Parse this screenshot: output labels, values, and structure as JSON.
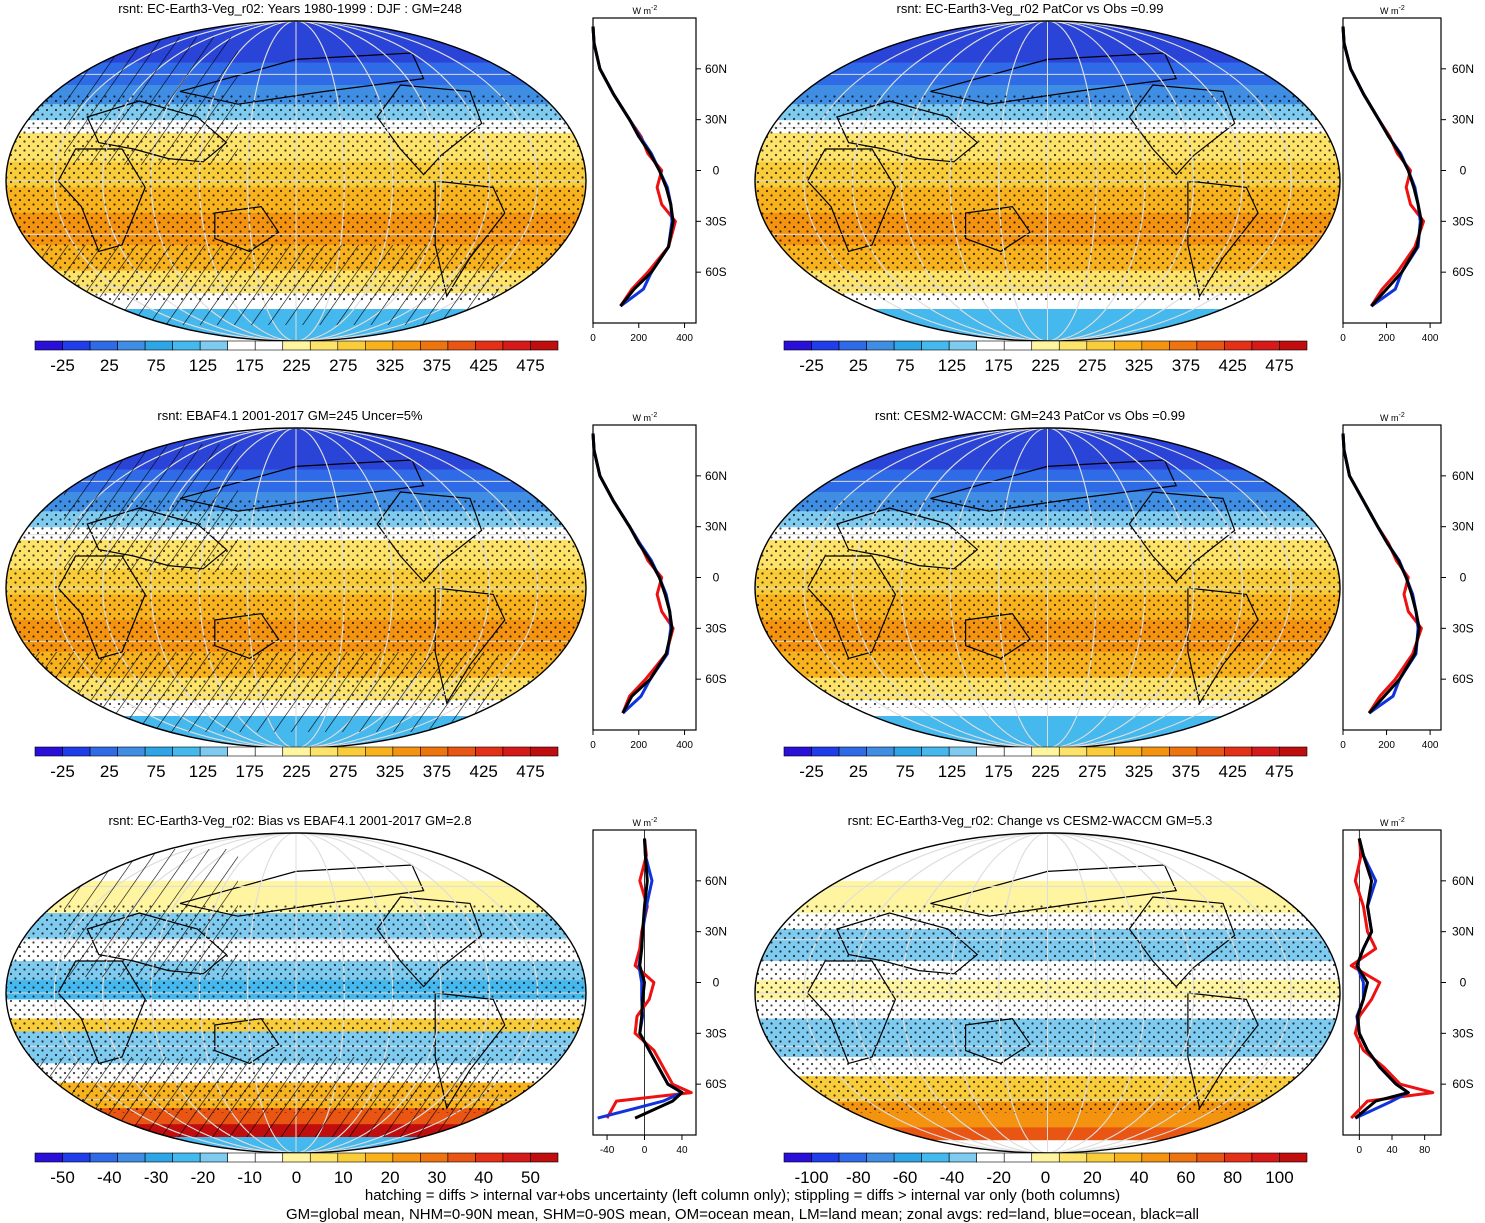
{
  "variable": "rsnt",
  "units_label_base": "W m",
  "units_label_exp": "-2",
  "profile_legend": {
    "land_color": "#ee1111",
    "ocean_color": "#1133dd",
    "all_color": "#000000"
  },
  "lat_labels": [
    "60N",
    "30N",
    "0",
    "30S",
    "60S"
  ],
  "colorbar_mean": {
    "colors": [
      "#2a0fd8",
      "#1f3de8",
      "#2f6be6",
      "#3f8ee3",
      "#2ea6e6",
      "#45b8ee",
      "#7fcbef",
      "#ffffff",
      "#ffffff",
      "#fff4a0",
      "#fde36a",
      "#f9cc3a",
      "#f7b21e",
      "#f39310",
      "#ee7410",
      "#e95512",
      "#e43016",
      "#d61a1a",
      "#c00d0d"
    ],
    "labels": [
      "-25",
      "25",
      "75",
      "125",
      "175",
      "225",
      "275",
      "325",
      "375",
      "425",
      "475"
    ]
  },
  "colorbar_bias": {
    "colors": [
      "#2a0fd8",
      "#1f3de8",
      "#2f6be6",
      "#3f8ee3",
      "#2ea6e6",
      "#45b8ee",
      "#7fcbef",
      "#ffffff",
      "#ffffff",
      "#fff4a0",
      "#fde36a",
      "#f9cc3a",
      "#f7b21e",
      "#f39310",
      "#ee7410",
      "#e95512",
      "#e43016",
      "#d61a1a",
      "#c00d0d"
    ],
    "labels": [
      "-50",
      "-40",
      "-30",
      "-20",
      "-10",
      "0",
      "10",
      "20",
      "30",
      "40",
      "50"
    ]
  },
  "colorbar_change": {
    "colors": [
      "#2a0fd8",
      "#1f3de8",
      "#2f6be6",
      "#3f8ee3",
      "#2ea6e6",
      "#45b8ee",
      "#7fcbef",
      "#ffffff",
      "#ffffff",
      "#fff4a0",
      "#fde36a",
      "#f9cc3a",
      "#f7b21e",
      "#f39310",
      "#ee7410",
      "#e95512",
      "#e43016",
      "#d61a1a",
      "#c00d0d"
    ],
    "labels": [
      "-100",
      "-80",
      "-60",
      "-40",
      "-20",
      "0",
      "20",
      "40",
      "60",
      "80",
      "100"
    ]
  },
  "panels": [
    {
      "id": "p1",
      "title": "rsnt: EC-Earth3-Veg_r02: Years 1980-1999 : DJF : GM=248",
      "kind": "mean",
      "hatch": true,
      "stipple": true,
      "profile_xticks": [
        "0",
        "200",
        "400"
      ],
      "profile_xlim": [
        0,
        450
      ],
      "colorbar": "colorbar_mean"
    },
    {
      "id": "p2",
      "title": "rsnt: EC-Earth3-Veg_r02 PatCor vs Obs =0.99",
      "kind": "mean",
      "hatch": false,
      "stipple": true,
      "profile_xticks": [
        "0",
        "200",
        "400"
      ],
      "profile_xlim": [
        0,
        450
      ],
      "colorbar": "colorbar_mean"
    },
    {
      "id": "p3",
      "title": "rsnt: EBAF4.1 2001-2017 GM=245 Uncer=5%",
      "kind": "mean",
      "hatch": true,
      "stipple": true,
      "profile_xticks": [
        "0",
        "200",
        "400"
      ],
      "profile_xlim": [
        0,
        450
      ],
      "colorbar": "colorbar_mean"
    },
    {
      "id": "p4",
      "title": "rsnt: CESM2-WACCM: GM=243 PatCor vs Obs =0.99",
      "kind": "mean",
      "hatch": false,
      "stipple": true,
      "profile_xticks": [
        "0",
        "200",
        "400"
      ],
      "profile_xlim": [
        0,
        450
      ],
      "colorbar": "colorbar_mean"
    },
    {
      "id": "p5",
      "title": "rsnt: EC-Earth3-Veg_r02: Bias vs EBAF4.1 2001-2017 GM=2.8",
      "kind": "bias",
      "hatch": true,
      "stipple": true,
      "profile_xticks": [
        "-40",
        "0",
        "40"
      ],
      "profile_xlim": [
        -55,
        55
      ],
      "colorbar": "colorbar_bias"
    },
    {
      "id": "p6",
      "title": "rsnt: EC-Earth3-Veg_r02: Change vs CESM2-WACCM GM=5.3",
      "kind": "change",
      "hatch": false,
      "stipple": true,
      "profile_xticks": [
        "0",
        "40",
        "80"
      ],
      "profile_xlim": [
        -20,
        100
      ],
      "colorbar": "colorbar_change"
    }
  ],
  "chart_data": [
    {
      "type": "heatmap",
      "title": "rsnt: EC-Earth3-Veg_r02: Years 1980-1999 : DJF : GM=248",
      "zonal_profile": {
        "lat": [
          -80,
          -70,
          -60,
          -45,
          -30,
          -20,
          -10,
          0,
          10,
          20,
          30,
          45,
          60,
          75,
          85
        ],
        "all": [
          120,
          180,
          255,
          330,
          350,
          340,
          320,
          290,
          250,
          200,
          160,
          90,
          30,
          5,
          0
        ],
        "land": [
          120,
          170,
          240,
          330,
          360,
          300,
          280,
          300,
          240,
          210,
          160,
          90,
          30,
          5,
          0
        ],
        "ocean": [
          120,
          220,
          255,
          330,
          345,
          340,
          325,
          290,
          255,
          205,
          160,
          90,
          30,
          5,
          0
        ]
      }
    },
    {
      "type": "heatmap",
      "title": "rsnt: EC-Earth3-Veg_r02 PatCor vs Obs =0.99",
      "zonal_profile": {
        "lat": [
          -80,
          -70,
          -60,
          -45,
          -30,
          -20,
          -10,
          0,
          10,
          20,
          30,
          45,
          60,
          75,
          85
        ],
        "all": [
          130,
          200,
          270,
          340,
          360,
          345,
          325,
          300,
          260,
          210,
          165,
          95,
          35,
          5,
          0
        ],
        "land": [
          130,
          180,
          250,
          330,
          370,
          310,
          290,
          310,
          250,
          215,
          165,
          95,
          35,
          5,
          0
        ],
        "ocean": [
          130,
          240,
          270,
          345,
          355,
          345,
          330,
          300,
          265,
          210,
          165,
          95,
          35,
          5,
          0
        ]
      }
    },
    {
      "type": "heatmap",
      "title": "rsnt: EBAF4.1 2001-2017 GM=245 Uncer=5%",
      "zonal_profile": {
        "lat": [
          -80,
          -70,
          -60,
          -45,
          -30,
          -20,
          -10,
          0,
          10,
          20,
          30,
          45,
          60,
          75,
          85
        ],
        "all": [
          130,
          170,
          250,
          320,
          345,
          335,
          315,
          290,
          250,
          200,
          160,
          90,
          30,
          5,
          0
        ],
        "land": [
          130,
          160,
          230,
          320,
          350,
          300,
          280,
          300,
          240,
          205,
          160,
          90,
          30,
          5,
          0
        ],
        "ocean": [
          130,
          210,
          250,
          325,
          340,
          335,
          320,
          290,
          255,
          205,
          160,
          90,
          30,
          5,
          0
        ]
      }
    },
    {
      "type": "heatmap",
      "title": "rsnt: CESM2-WACCM: GM=243 PatCor vs Obs =0.99",
      "zonal_profile": {
        "lat": [
          -80,
          -70,
          -60,
          -45,
          -30,
          -20,
          -10,
          0,
          10,
          20,
          30,
          45,
          60,
          75,
          85
        ],
        "all": [
          120,
          190,
          260,
          330,
          350,
          335,
          315,
          290,
          255,
          205,
          160,
          95,
          30,
          5,
          0
        ],
        "land": [
          120,
          170,
          240,
          320,
          360,
          300,
          280,
          300,
          245,
          210,
          160,
          95,
          30,
          5,
          0
        ],
        "ocean": [
          120,
          230,
          260,
          335,
          345,
          335,
          320,
          290,
          258,
          205,
          160,
          95,
          30,
          5,
          0
        ]
      }
    },
    {
      "type": "heatmap",
      "title": "rsnt: EC-Earth3-Veg_r02: Bias vs EBAF4.1 2001-2017 GM=2.8",
      "zonal_profile": {
        "lat": [
          -80,
          -70,
          -65,
          -60,
          -50,
          -40,
          -30,
          -20,
          -10,
          0,
          10,
          20,
          30,
          45,
          60,
          75,
          85
        ],
        "all": [
          -10,
          30,
          40,
          25,
          15,
          5,
          -5,
          -3,
          -2,
          0,
          -5,
          -3,
          -2,
          0,
          3,
          1,
          0
        ],
        "land": [
          -40,
          -30,
          50,
          30,
          20,
          10,
          -10,
          -8,
          5,
          10,
          -10,
          -5,
          -3,
          3,
          -5,
          2,
          0
        ],
        "ocean": [
          -50,
          20,
          40,
          25,
          15,
          5,
          -5,
          -2,
          -3,
          -3,
          -6,
          -3,
          -2,
          2,
          8,
          1,
          0
        ]
      }
    },
    {
      "type": "heatmap",
      "title": "rsnt: EC-Earth3-Veg_r02: Change vs CESM2-WACCM GM=5.3",
      "zonal_profile": {
        "lat": [
          -80,
          -70,
          -65,
          -60,
          -50,
          -40,
          -30,
          -20,
          -10,
          0,
          10,
          20,
          30,
          45,
          60,
          75,
          85
        ],
        "all": [
          -5,
          20,
          60,
          45,
          25,
          10,
          0,
          -2,
          5,
          10,
          -3,
          5,
          15,
          10,
          15,
          5,
          0
        ],
        "land": [
          -10,
          10,
          90,
          50,
          30,
          5,
          -5,
          0,
          15,
          25,
          -10,
          20,
          10,
          5,
          -5,
          2,
          0
        ],
        "ocean": [
          -5,
          40,
          60,
          45,
          25,
          10,
          0,
          -3,
          5,
          5,
          -3,
          5,
          15,
          10,
          20,
          5,
          0
        ]
      }
    }
  ],
  "footer": {
    "line1": "hatching = diffs > internal var+obs uncertainty (left column only); stippling = diffs > internal var only (both columns)",
    "line2": "GM=global mean, NHM=0-90N mean, SHM=0-90S mean, OM=ocean mean, LM=land mean; zonal avgs: red=land, blue=ocean, black=all"
  }
}
